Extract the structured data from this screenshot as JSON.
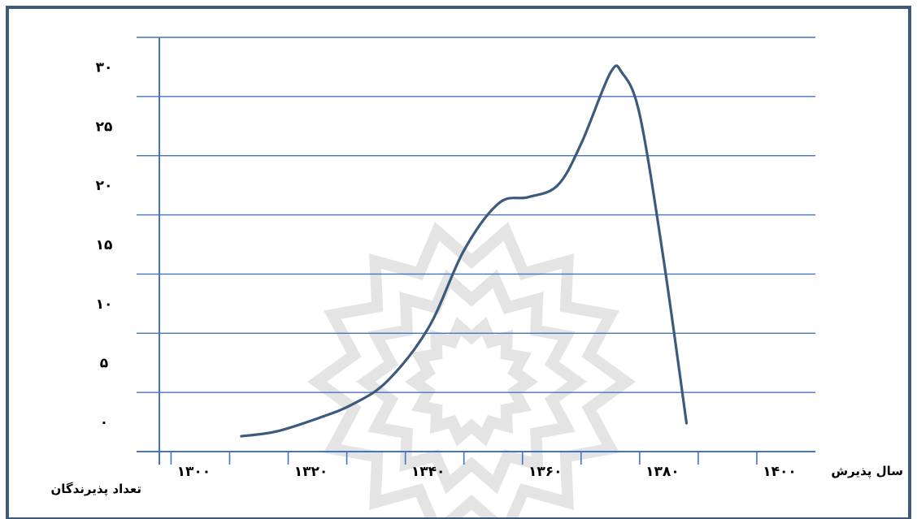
{
  "chart_data": {
    "type": "line",
    "title": "",
    "xlabel": "سال پذیرش",
    "ylabel": "تعداد پذیرندگان",
    "x_ticks": [
      "۱۳۰۰",
      "۱۳۲۰",
      "۱۳۴۰",
      "۱۳۶۰",
      "۱۳۸۰",
      "۱۴۰۰"
    ],
    "y_ticks": [
      "۰",
      "۵",
      "۱۰",
      "۱۵",
      "۲۰",
      "۲۵",
      "۳۰"
    ],
    "xlim": [
      1298,
      1410
    ],
    "ylim": [
      -2.5,
      32.5
    ],
    "grid": true,
    "colors": {
      "line": "#3b5a7e",
      "grid": "#4472c4",
      "frame": "#3f5a7a"
    },
    "series": [
      {
        "x": [
          1312,
          1318,
          1325,
          1331,
          1337,
          1344,
          1350,
          1356,
          1361,
          1366,
          1370,
          1375,
          1377,
          1380,
          1384,
          1388
        ],
        "y": [
          -1.2,
          -0.8,
          0.3,
          1.5,
          3.5,
          8.0,
          14.5,
          18.5,
          19.0,
          20.0,
          23.5,
          29.5,
          29.5,
          26.0,
          14.0,
          -0.1
        ]
      }
    ]
  }
}
